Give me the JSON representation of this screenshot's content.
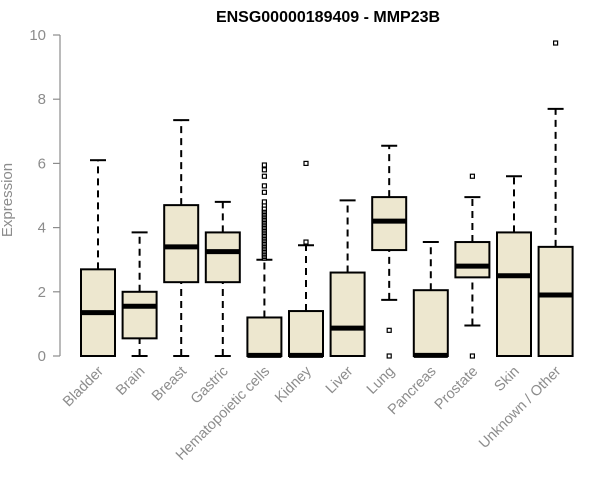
{
  "chart_data": {
    "type": "boxplot",
    "title": "ENSG00000189409 - MMP23B",
    "xlabel": "",
    "ylabel": "Expression",
    "ylim": [
      0,
      10
    ],
    "yticks": [
      0,
      2,
      4,
      6,
      8,
      10
    ],
    "grid": false,
    "categories": [
      "Bladder",
      "Brain",
      "Breast",
      "Gastric",
      "Hematopoietic cells",
      "Kidney",
      "Liver",
      "Lung",
      "Pancreas",
      "Prostate",
      "Skin",
      "Unknown / Other"
    ],
    "boxes": [
      {
        "category": "Bladder",
        "whisker_low": 0,
        "q1": 0,
        "median": 1.35,
        "q3": 2.7,
        "whisker_high": 6.1,
        "outliers": []
      },
      {
        "category": "Brain",
        "whisker_low": 0,
        "q1": 0.55,
        "median": 1.55,
        "q3": 2.0,
        "whisker_high": 3.85,
        "outliers": []
      },
      {
        "category": "Breast",
        "whisker_low": 0,
        "q1": 2.3,
        "median": 3.4,
        "q3": 4.7,
        "whisker_high": 7.35,
        "outliers": []
      },
      {
        "category": "Gastric",
        "whisker_low": 0,
        "q1": 2.3,
        "median": 3.25,
        "q3": 3.85,
        "whisker_high": 4.8,
        "outliers": []
      },
      {
        "category": "Hematopoietic cells",
        "whisker_low": 0,
        "q1": 0,
        "median": 0.02,
        "q3": 1.2,
        "whisker_high": 3.0,
        "outliers": [
          3.05,
          3.1,
          3.15,
          3.2,
          3.25,
          3.3,
          3.35,
          3.4,
          3.45,
          3.5,
          3.55,
          3.6,
          3.65,
          3.7,
          3.75,
          3.8,
          3.85,
          3.9,
          3.95,
          4.0,
          4.05,
          4.1,
          4.15,
          4.2,
          4.25,
          4.3,
          4.35,
          4.4,
          4.45,
          4.5,
          4.55,
          4.6,
          4.7,
          4.8,
          5.1,
          5.3,
          5.6,
          5.8,
          5.95
        ]
      },
      {
        "category": "Kidney",
        "whisker_low": 0,
        "q1": 0,
        "median": 0.02,
        "q3": 1.4,
        "whisker_high": 3.45,
        "outliers": [
          3.55,
          6.0
        ]
      },
      {
        "category": "Liver",
        "whisker_low": 0,
        "q1": 0,
        "median": 0.87,
        "q3": 2.6,
        "whisker_high": 4.85,
        "outliers": []
      },
      {
        "category": "Lung",
        "whisker_low": 1.75,
        "q1": 3.3,
        "median": 4.2,
        "q3": 4.95,
        "whisker_high": 6.55,
        "outliers": [
          0.8,
          0
        ]
      },
      {
        "category": "Pancreas",
        "whisker_low": 0,
        "q1": 0,
        "median": 0.02,
        "q3": 2.05,
        "whisker_high": 3.55,
        "outliers": []
      },
      {
        "category": "Prostate",
        "whisker_low": 0.95,
        "q1": 2.45,
        "median": 2.8,
        "q3": 3.55,
        "whisker_high": 4.95,
        "outliers": [
          5.6,
          0
        ]
      },
      {
        "category": "Skin",
        "whisker_low": 0,
        "q1": 0,
        "median": 2.5,
        "q3": 3.85,
        "whisker_high": 5.6,
        "outliers": []
      },
      {
        "category": "Unknown / Other",
        "whisker_low": 0,
        "q1": 0,
        "median": 1.9,
        "q3": 3.4,
        "whisker_high": 7.7,
        "outliers": [
          9.75
        ]
      }
    ],
    "colors": {
      "box_fill": "#ede7cf",
      "box_stroke": "#000000",
      "axis": "#8c8c8c",
      "text": "#8c8c8c",
      "title": "#000000"
    }
  }
}
